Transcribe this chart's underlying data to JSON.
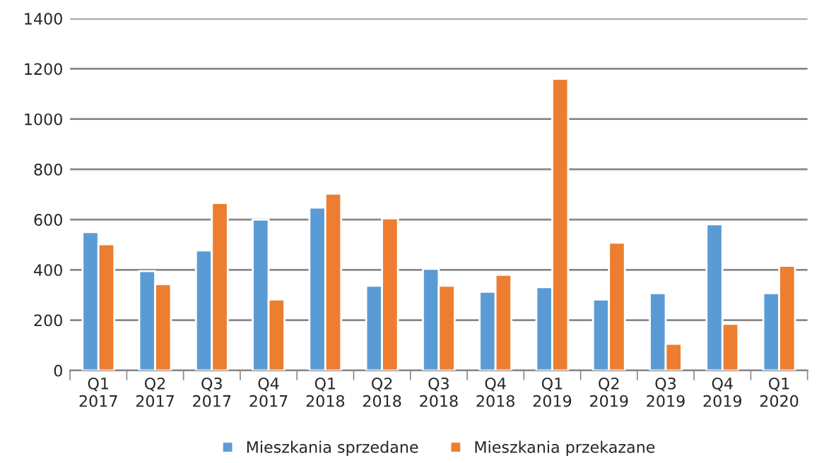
{
  "chart_data": {
    "type": "bar",
    "categories": [
      "Q1\n2017",
      "Q2\n2017",
      "Q3\n2017",
      "Q4\n2017",
      "Q1\n2018",
      "Q2\n2018",
      "Q3\n2018",
      "Q4\n2018",
      "Q1\n2019",
      "Q2\n2019",
      "Q3\n2019",
      "Q4\n2019",
      "Q1\n2020"
    ],
    "series": [
      {
        "name": "Mieszkania sprzedane",
        "color": "#5b9bd5",
        "values": [
          550,
          395,
          477,
          600,
          648,
          337,
          404,
          313,
          331,
          282,
          307,
          581,
          307
        ]
      },
      {
        "name": "Mieszkania przekazane",
        "color": "#ed7d31",
        "values": [
          502,
          343,
          666,
          282,
          703,
          605,
          337,
          380,
          1160,
          508,
          106,
          185,
          416
        ]
      }
    ],
    "ylim": [
      0,
      1400
    ],
    "yticks": [
      0,
      200,
      400,
      600,
      800,
      1000,
      1200,
      1400
    ],
    "grid": "y",
    "legend": "bottom"
  }
}
